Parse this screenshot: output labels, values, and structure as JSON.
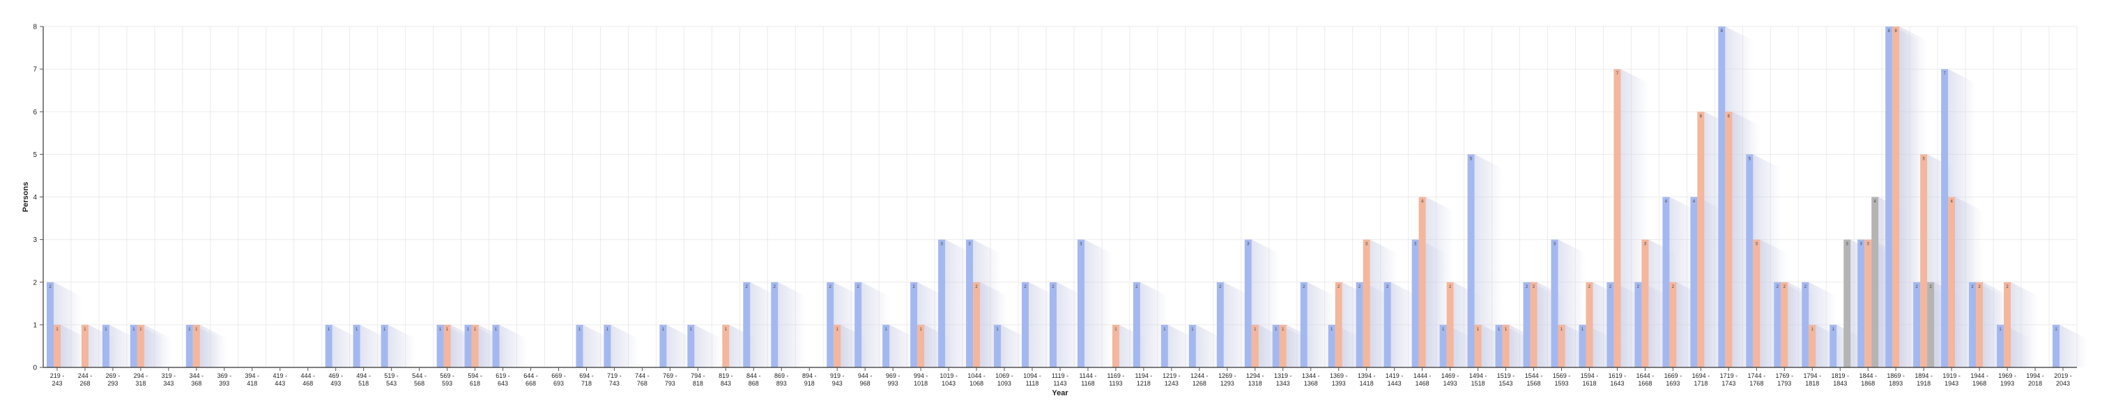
{
  "chart_data": {
    "type": "bar",
    "xlabel": "Year",
    "ylabel": "Persons",
    "ylim": [
      0,
      8
    ],
    "yticks": [
      "0",
      "1",
      "2",
      "3",
      "4",
      "5",
      "6",
      "7",
      "8"
    ],
    "grid": true,
    "legend": "none",
    "categories": [
      "219 - 243",
      "244 - 268",
      "269 - 293",
      "294 - 318",
      "319 - 343",
      "344 - 368",
      "369 - 393",
      "394 - 418",
      "419 - 443",
      "444 - 468",
      "469 - 493",
      "494 - 518",
      "519 - 543",
      "544 - 568",
      "569 - 593",
      "594 - 618",
      "619 - 643",
      "644 - 668",
      "669 - 693",
      "694 - 718",
      "719 - 743",
      "744 - 768",
      "769 - 793",
      "794 - 818",
      "819 - 843",
      "844 - 868",
      "869 - 893",
      "894 - 918",
      "919 - 943",
      "944 - 968",
      "969 - 993",
      "994 - 1018",
      "1019 - 1043",
      "1044 - 1068",
      "1069 - 1093",
      "1094 - 1118",
      "1119 - 1143",
      "1144 - 1168",
      "1169 - 1193",
      "1194 - 1218",
      "1219 - 1243",
      "1244 - 1268",
      "1269 - 1293",
      "1294 - 1318",
      "1319 - 1343",
      "1344 - 1368",
      "1369 - 1393",
      "1394 - 1418",
      "1419 - 1443",
      "1444 - 1468",
      "1469 - 1493",
      "1494 - 1518",
      "1519 - 1543",
      "1544 - 1568",
      "1569 - 1593",
      "1594 - 1618",
      "1619 - 1643",
      "1644 - 1668",
      "1669 - 1693",
      "1694 - 1718",
      "1719 - 1743",
      "1744 - 1768",
      "1769 - 1793",
      "1794 - 1818",
      "1819 - 1843",
      "1844 - 1868",
      "1869 - 1893",
      "1894 - 1918",
      "1919 - 1943",
      "1944 - 1968",
      "1969 - 1993",
      "1994 - 2018",
      "2019 - 2043"
    ],
    "series": [
      {
        "color": "#a4b8f0",
        "values": [
          2,
          0,
          1,
          1,
          0,
          1,
          0,
          0,
          0,
          0,
          1,
          1,
          1,
          0,
          1,
          1,
          1,
          0,
          0,
          1,
          1,
          0,
          1,
          1,
          0,
          2,
          2,
          0,
          2,
          2,
          1,
          2,
          3,
          3,
          1,
          2,
          2,
          3,
          0,
          2,
          1,
          1,
          2,
          3,
          1,
          2,
          1,
          2,
          2,
          3,
          1,
          5,
          1,
          2,
          3,
          1,
          2,
          2,
          4,
          4,
          8,
          5,
          2,
          2,
          1,
          3,
          8,
          2,
          7,
          2,
          1,
          0,
          1
        ]
      },
      {
        "color": "#f4b69c",
        "values": [
          1,
          1,
          0,
          1,
          0,
          1,
          0,
          0,
          0,
          0,
          0,
          0,
          0,
          0,
          1,
          1,
          0,
          0,
          0,
          0,
          0,
          0,
          0,
          0,
          1,
          0,
          0,
          0,
          1,
          0,
          0,
          1,
          0,
          2,
          0,
          0,
          0,
          0,
          1,
          0,
          0,
          0,
          0,
          1,
          1,
          0,
          2,
          3,
          0,
          4,
          2,
          1,
          1,
          2,
          1,
          2,
          7,
          3,
          2,
          6,
          6,
          3,
          2,
          1,
          0,
          3,
          8,
          5,
          4,
          2,
          2,
          0,
          0
        ]
      },
      {
        "color": "#b4b4b4",
        "values": [
          0,
          0,
          0,
          0,
          0,
          0,
          0,
          0,
          0,
          0,
          0,
          0,
          0,
          0,
          0,
          0,
          0,
          0,
          0,
          0,
          0,
          0,
          0,
          0,
          0,
          0,
          0,
          0,
          0,
          0,
          0,
          0,
          0,
          0,
          0,
          0,
          0,
          0,
          0,
          0,
          0,
          0,
          0,
          0,
          0,
          0,
          0,
          0,
          0,
          0,
          0,
          0,
          0,
          0,
          0,
          0,
          0,
          0,
          0,
          0,
          0,
          0,
          0,
          0,
          3,
          4,
          0,
          2,
          0,
          0,
          0,
          0,
          0
        ]
      }
    ]
  }
}
